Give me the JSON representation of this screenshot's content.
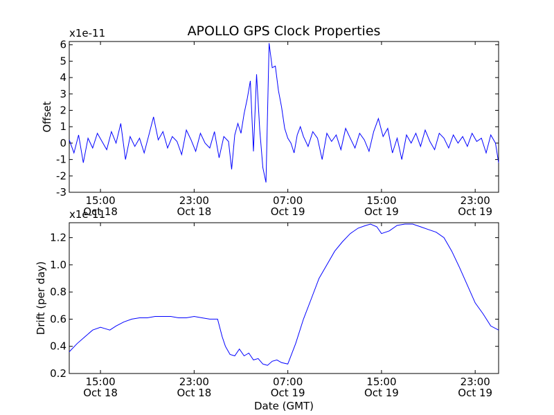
{
  "title": "APOLLO GPS Clock Properties",
  "chart_data": [
    {
      "type": "line",
      "name": "offset-panel",
      "ylabel": "Offset",
      "xlabel": "",
      "multiplier": "x1e-11",
      "ylim": [
        -3,
        6.2
      ],
      "yticks": [
        -3,
        -2,
        -1,
        0,
        1,
        2,
        3,
        4,
        5,
        6
      ],
      "xlim_hours": [
        11,
        38.5
      ],
      "xticks": [
        {
          "hour": 13,
          "time": "15:00",
          "date": "Oct 18"
        },
        {
          "hour": 19,
          "time": "23:00",
          "date": "Oct 18"
        },
        {
          "hour": 25,
          "time": "07:00",
          "date": "Oct 19"
        },
        {
          "hour": 31,
          "time": "15:00",
          "date": "Oct 19"
        },
        {
          "hour": 37,
          "time": "23:00",
          "date": "Oct 19"
        }
      ],
      "color": "#0000ff",
      "series": [
        {
          "x": [
            11.0,
            11.3,
            11.6,
            11.9,
            12.2,
            12.5,
            12.8,
            13.1,
            13.4,
            13.7,
            14.0,
            14.3,
            14.6,
            14.9,
            15.2,
            15.5,
            15.8,
            16.1,
            16.4,
            16.7,
            17.0,
            17.3,
            17.6,
            17.9,
            18.2,
            18.5,
            18.8,
            19.1,
            19.4,
            19.7,
            20.0,
            20.3,
            20.6,
            20.9,
            21.2,
            21.4,
            21.6,
            21.8,
            22.0,
            22.2,
            22.4,
            22.6,
            22.8,
            23.0,
            23.2,
            23.4,
            23.6,
            23.8,
            24.0,
            24.2,
            24.4,
            24.6,
            24.8,
            25.0,
            25.2,
            25.4,
            25.6,
            25.8,
            26.0,
            26.3,
            26.6,
            26.9,
            27.2,
            27.5,
            27.8,
            28.1,
            28.4,
            28.7,
            29.0,
            29.3,
            29.6,
            29.9,
            30.2,
            30.5,
            30.8,
            31.1,
            31.4,
            31.7,
            32.0,
            32.3,
            32.6,
            32.9,
            33.2,
            33.5,
            33.8,
            34.1,
            34.4,
            34.7,
            35.0,
            35.3,
            35.6,
            35.9,
            36.2,
            36.5,
            36.8,
            37.1,
            37.4,
            37.7,
            38.0,
            38.3,
            38.5
          ],
          "y": [
            0.2,
            -0.6,
            0.5,
            -1.2,
            0.3,
            -0.3,
            0.6,
            0.1,
            -0.4,
            0.7,
            0.0,
            1.2,
            -1.0,
            0.4,
            -0.2,
            0.3,
            -0.6,
            0.5,
            1.6,
            0.2,
            0.7,
            -0.3,
            0.4,
            0.1,
            -0.7,
            0.8,
            0.2,
            -0.5,
            0.6,
            0.0,
            -0.3,
            0.7,
            -0.9,
            0.4,
            0.1,
            -1.6,
            0.5,
            1.2,
            0.6,
            1.8,
            2.7,
            3.8,
            -0.5,
            4.2,
            0.8,
            -1.5,
            -2.4,
            6.1,
            4.6,
            4.7,
            3.2,
            2.2,
            0.9,
            0.3,
            0.0,
            -0.6,
            0.5,
            1.0,
            0.4,
            -0.2,
            0.7,
            0.3,
            -1.0,
            0.6,
            0.1,
            0.5,
            -0.4,
            0.9,
            0.3,
            -0.3,
            0.6,
            0.2,
            -0.5,
            0.7,
            1.5,
            0.4,
            0.9,
            -0.6,
            0.3,
            -1.0,
            0.5,
            0.0,
            0.6,
            -0.2,
            0.8,
            0.1,
            -0.4,
            0.6,
            0.3,
            -0.3,
            0.5,
            0.0,
            0.4,
            -0.2,
            0.6,
            0.1,
            0.3,
            -0.6,
            0.5,
            0.0,
            -1.2
          ]
        }
      ]
    },
    {
      "type": "line",
      "name": "drift-panel",
      "ylabel": "Drift (per day)",
      "xlabel": "Date (GMT)",
      "multiplier": "x1e-11",
      "ylim": [
        0.2,
        1.31
      ],
      "yticks": [
        0.2,
        0.4,
        0.6,
        0.8,
        1.0,
        1.2
      ],
      "xlim_hours": [
        11,
        38.5
      ],
      "xticks": [
        {
          "hour": 13,
          "time": "15:00",
          "date": "Oct 18"
        },
        {
          "hour": 19,
          "time": "23:00",
          "date": "Oct 18"
        },
        {
          "hour": 25,
          "time": "07:00",
          "date": "Oct 19"
        },
        {
          "hour": 31,
          "time": "15:00",
          "date": "Oct 19"
        },
        {
          "hour": 37,
          "time": "23:00",
          "date": "Oct 19"
        }
      ],
      "color": "#0000ff",
      "series": [
        {
          "x": [
            11.0,
            11.5,
            12.0,
            12.5,
            13.0,
            13.3,
            13.6,
            14.0,
            14.5,
            15.0,
            15.5,
            16.0,
            16.5,
            17.0,
            17.5,
            18.0,
            18.5,
            19.0,
            19.5,
            20.0,
            20.5,
            20.8,
            21.0,
            21.3,
            21.6,
            21.9,
            22.2,
            22.5,
            22.8,
            23.1,
            23.4,
            23.7,
            24.0,
            24.3,
            24.6,
            25.0,
            25.5,
            26.0,
            26.5,
            27.0,
            27.5,
            28.0,
            28.5,
            29.0,
            29.5,
            30.0,
            30.3,
            30.7,
            31.0,
            31.5,
            32.0,
            32.5,
            33.0,
            33.5,
            34.0,
            34.5,
            35.0,
            35.5,
            36.0,
            36.5,
            37.0,
            37.5,
            38.0,
            38.5
          ],
          "y": [
            0.36,
            0.42,
            0.47,
            0.52,
            0.54,
            0.53,
            0.52,
            0.55,
            0.58,
            0.6,
            0.61,
            0.61,
            0.62,
            0.62,
            0.62,
            0.61,
            0.61,
            0.62,
            0.61,
            0.6,
            0.6,
            0.47,
            0.4,
            0.34,
            0.33,
            0.38,
            0.33,
            0.35,
            0.3,
            0.31,
            0.27,
            0.26,
            0.29,
            0.3,
            0.28,
            0.27,
            0.42,
            0.6,
            0.75,
            0.9,
            1.0,
            1.1,
            1.17,
            1.23,
            1.27,
            1.29,
            1.3,
            1.28,
            1.23,
            1.25,
            1.29,
            1.3,
            1.3,
            1.28,
            1.26,
            1.24,
            1.2,
            1.1,
            0.98,
            0.85,
            0.72,
            0.64,
            0.55,
            0.52
          ]
        }
      ]
    }
  ]
}
